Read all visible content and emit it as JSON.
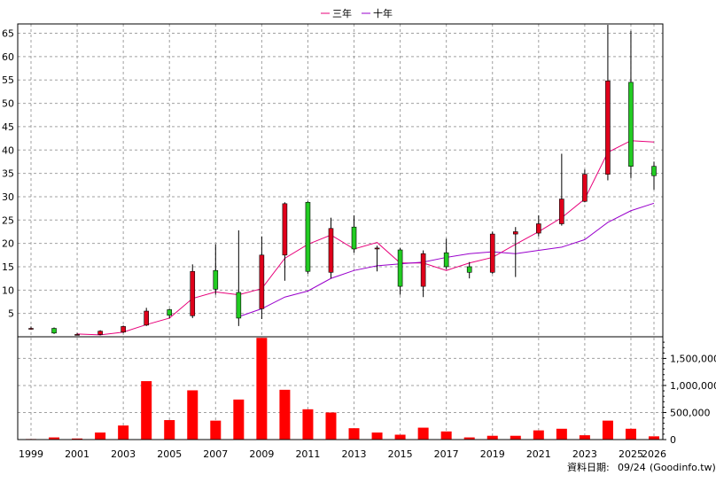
{
  "legend": {
    "ma3_label": "三年",
    "ma10_label": "十年"
  },
  "footer": {
    "date_prefix": "資料日期:",
    "date_value": "09/24",
    "source": "(Goodinfo.tw)"
  },
  "colors": {
    "up": "#e0001b",
    "down": "#22cc22",
    "ma3": "#e8007a",
    "ma10": "#9900cc",
    "volume": "#ff0000"
  },
  "chart_data": {
    "type": "candlestick",
    "x_ticks": [
      "1999",
      "2001",
      "2003",
      "2005",
      "2007",
      "2009",
      "2011",
      "2013",
      "2015",
      "2017",
      "2019",
      "2021",
      "2023",
      "2025",
      "2026"
    ],
    "price_axis": {
      "range": [
        0,
        67
      ],
      "ticks": [
        5,
        10,
        15,
        20,
        25,
        30,
        35,
        40,
        45,
        50,
        55,
        60,
        65
      ]
    },
    "volume_axis": {
      "range": [
        0,
        1900000
      ],
      "ticks": [
        0,
        500000,
        1000000,
        1500000
      ],
      "tick_labels": [
        "0",
        "500,000",
        "1,000,000",
        "1,500,000"
      ]
    },
    "candles": [
      {
        "year": 1999,
        "open": 1.8,
        "close": 1.8,
        "high": 2.2,
        "low": 1.5
      },
      {
        "year": 2000,
        "open": 1.8,
        "close": 0.8,
        "high": 2.0,
        "low": 0.6
      },
      {
        "year": 2001,
        "open": 0.5,
        "close": 0.5,
        "high": 0.8,
        "low": 0.3
      },
      {
        "year": 2002,
        "open": 0.5,
        "close": 1.2,
        "high": 1.4,
        "low": 0.3
      },
      {
        "year": 2003,
        "open": 1.0,
        "close": 2.2,
        "high": 2.4,
        "low": 0.8
      },
      {
        "year": 2004,
        "open": 2.5,
        "close": 5.5,
        "high": 6.2,
        "low": 2.3
      },
      {
        "year": 2005,
        "open": 5.8,
        "close": 4.6,
        "high": 6.0,
        "low": 4.0
      },
      {
        "year": 2006,
        "open": 4.5,
        "close": 14.0,
        "high": 15.5,
        "low": 4.0
      },
      {
        "year": 2007,
        "open": 14.2,
        "close": 10.2,
        "high": 19.8,
        "low": 9.0
      },
      {
        "year": 2008,
        "open": 9.5,
        "close": 4.0,
        "high": 22.8,
        "low": 2.3
      },
      {
        "year": 2009,
        "open": 6.0,
        "close": 17.5,
        "high": 21.5,
        "low": 3.8
      },
      {
        "year": 2010,
        "open": 17.5,
        "close": 28.5,
        "high": 28.8,
        "low": 12.0
      },
      {
        "year": 2011,
        "open": 28.8,
        "close": 14.0,
        "high": 29.0,
        "low": 13.5
      },
      {
        "year": 2012,
        "open": 13.8,
        "close": 23.2,
        "high": 25.5,
        "low": 12.5
      },
      {
        "year": 2013,
        "open": 23.5,
        "close": 18.8,
        "high": 26.0,
        "low": 18.0
      },
      {
        "year": 2014,
        "open": 18.8,
        "close": 19.0,
        "high": 19.5,
        "low": 14.0
      },
      {
        "year": 2015,
        "open": 18.6,
        "close": 10.8,
        "high": 19.0,
        "low": 9.0
      },
      {
        "year": 2016,
        "open": 10.8,
        "close": 17.8,
        "high": 18.5,
        "low": 8.5
      },
      {
        "year": 2017,
        "open": 18.0,
        "close": 15.0,
        "high": 21.0,
        "low": 14.5
      },
      {
        "year": 2018,
        "open": 15.0,
        "close": 13.8,
        "high": 16.0,
        "low": 12.5
      },
      {
        "year": 2019,
        "open": 13.8,
        "close": 22.0,
        "high": 22.5,
        "low": 13.5
      },
      {
        "year": 2020,
        "open": 22.0,
        "close": 22.5,
        "high": 23.5,
        "low": 12.8
      },
      {
        "year": 2021,
        "open": 22.2,
        "close": 24.2,
        "high": 26.0,
        "low": 21.5
      },
      {
        "year": 2022,
        "open": 24.2,
        "close": 29.5,
        "high": 39.2,
        "low": 23.8
      },
      {
        "year": 2023,
        "open": 29.0,
        "close": 34.8,
        "high": 35.8,
        "low": 28.8
      },
      {
        "year": 2024,
        "open": 34.8,
        "close": 54.8,
        "high": 66.8,
        "low": 33.5
      },
      {
        "year": 2025,
        "open": 54.5,
        "close": 36.5,
        "high": 65.5,
        "low": 34.0
      },
      {
        "year": 2026,
        "open": 36.5,
        "close": 34.5,
        "high": 37.5,
        "low": 31.5
      }
    ],
    "series": [
      {
        "name": "三年",
        "key": "ma3",
        "points": [
          {
            "year": 2001,
            "value": 0.6
          },
          {
            "year": 2002,
            "value": 0.4
          },
          {
            "year": 2003,
            "value": 1.0
          },
          {
            "year": 2004,
            "value": 2.6
          },
          {
            "year": 2005,
            "value": 4.0
          },
          {
            "year": 2006,
            "value": 8.2
          },
          {
            "year": 2007,
            "value": 9.6
          },
          {
            "year": 2008,
            "value": 9.0
          },
          {
            "year": 2009,
            "value": 10.3
          },
          {
            "year": 2010,
            "value": 16.8
          },
          {
            "year": 2011,
            "value": 19.8
          },
          {
            "year": 2012,
            "value": 21.8
          },
          {
            "year": 2013,
            "value": 18.8
          },
          {
            "year": 2014,
            "value": 20.2
          },
          {
            "year": 2015,
            "value": 15.8
          },
          {
            "year": 2016,
            "value": 15.8
          },
          {
            "year": 2017,
            "value": 14.2
          },
          {
            "year": 2018,
            "value": 15.8
          },
          {
            "year": 2019,
            "value": 17.0
          },
          {
            "year": 2020,
            "value": 19.8
          },
          {
            "year": 2021,
            "value": 22.5
          },
          {
            "year": 2022,
            "value": 25.5
          },
          {
            "year": 2023,
            "value": 29.5
          },
          {
            "year": 2024,
            "value": 39.5
          },
          {
            "year": 2025,
            "value": 42.0
          },
          {
            "year": 2026,
            "value": 41.7
          }
        ]
      },
      {
        "name": "十年",
        "key": "ma10",
        "points": [
          {
            "year": 2008,
            "value": 4.3
          },
          {
            "year": 2009,
            "value": 6.0
          },
          {
            "year": 2010,
            "value": 8.5
          },
          {
            "year": 2011,
            "value": 9.8
          },
          {
            "year": 2012,
            "value": 12.5
          },
          {
            "year": 2013,
            "value": 14.2
          },
          {
            "year": 2014,
            "value": 15.2
          },
          {
            "year": 2015,
            "value": 15.6
          },
          {
            "year": 2016,
            "value": 16.0
          },
          {
            "year": 2017,
            "value": 17.0
          },
          {
            "year": 2018,
            "value": 17.8
          },
          {
            "year": 2019,
            "value": 18.2
          },
          {
            "year": 2020,
            "value": 17.8
          },
          {
            "year": 2021,
            "value": 18.5
          },
          {
            "year": 2022,
            "value": 19.2
          },
          {
            "year": 2023,
            "value": 20.8
          },
          {
            "year": 2024,
            "value": 24.5
          },
          {
            "year": 2025,
            "value": 27.0
          },
          {
            "year": 2026,
            "value": 28.6
          }
        ]
      }
    ],
    "volume": [
      {
        "year": 1999,
        "value": 10000
      },
      {
        "year": 2000,
        "value": 40000
      },
      {
        "year": 2001,
        "value": 20000
      },
      {
        "year": 2002,
        "value": 130000
      },
      {
        "year": 2003,
        "value": 260000
      },
      {
        "year": 2004,
        "value": 1080000
      },
      {
        "year": 2005,
        "value": 360000
      },
      {
        "year": 2006,
        "value": 910000
      },
      {
        "year": 2007,
        "value": 350000
      },
      {
        "year": 2008,
        "value": 740000
      },
      {
        "year": 2009,
        "value": 1880000
      },
      {
        "year": 2010,
        "value": 920000
      },
      {
        "year": 2011,
        "value": 560000
      },
      {
        "year": 2012,
        "value": 500000
      },
      {
        "year": 2013,
        "value": 210000
      },
      {
        "year": 2014,
        "value": 130000
      },
      {
        "year": 2015,
        "value": 90000
      },
      {
        "year": 2016,
        "value": 220000
      },
      {
        "year": 2017,
        "value": 150000
      },
      {
        "year": 2018,
        "value": 40000
      },
      {
        "year": 2019,
        "value": 70000
      },
      {
        "year": 2020,
        "value": 70000
      },
      {
        "year": 2021,
        "value": 170000
      },
      {
        "year": 2022,
        "value": 200000
      },
      {
        "year": 2023,
        "value": 80000
      },
      {
        "year": 2024,
        "value": 350000
      },
      {
        "year": 2025,
        "value": 200000
      },
      {
        "year": 2026,
        "value": 60000
      }
    ],
    "grid": true,
    "legend_position": "top-center"
  }
}
